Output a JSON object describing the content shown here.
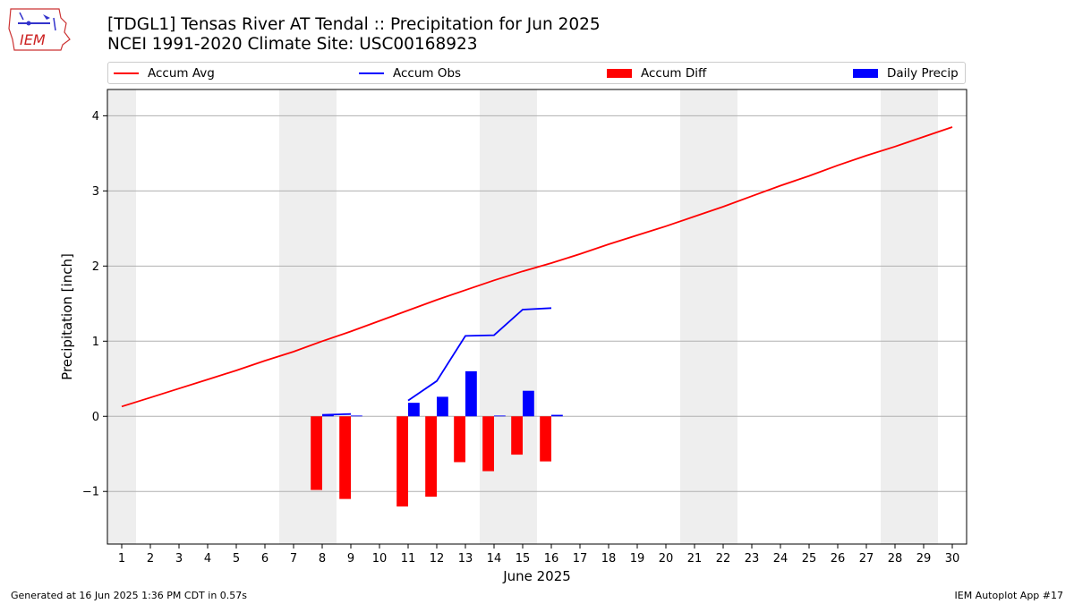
{
  "header": {
    "title": "[TDGL1] Tensas River  AT Tendal :: Precipitation for Jun 2025",
    "subtitle": "NCEI 1991-2020 Climate Site: USC00168923",
    "logo_text": "IEM"
  },
  "legend": [
    {
      "label": "Accum Avg",
      "color": "#ff0000",
      "kind": "line"
    },
    {
      "label": "Accum Obs",
      "color": "#0000ff",
      "kind": "line"
    },
    {
      "label": "Accum Diff",
      "color": "#ff0000",
      "kind": "bar"
    },
    {
      "label": "Daily Precip",
      "color": "#0000ff",
      "kind": "bar"
    }
  ],
  "footer": {
    "generated": "Generated at 16 Jun 2025 1:36 PM CDT in 0.57s",
    "app": "IEM Autoplot App #17"
  },
  "chart_data": {
    "type": "bar",
    "title": "[TDGL1] Tensas River  AT Tendal :: Precipitation for Jun 2025",
    "xlabel": "June 2025",
    "ylabel": "Precipitation [inch]",
    "x": [
      1,
      2,
      3,
      4,
      5,
      6,
      7,
      8,
      9,
      10,
      11,
      12,
      13,
      14,
      15,
      16,
      17,
      18,
      19,
      20,
      21,
      22,
      23,
      24,
      25,
      26,
      27,
      28,
      29,
      30
    ],
    "xlim": [
      0.5,
      30.5
    ],
    "ylim": [
      -1.7,
      4.35
    ],
    "yticks": [
      -1,
      0,
      1,
      2,
      3,
      4
    ],
    "ytick_labels": [
      "−1",
      "0",
      "1",
      "2",
      "3",
      "4"
    ],
    "grid": "horizontal",
    "legend_position": "top",
    "weekend_shading": [
      1,
      7,
      8,
      14,
      15,
      21,
      22,
      28,
      29
    ],
    "series": [
      {
        "name": "Accum Avg",
        "type": "line",
        "color": "#ff0000",
        "x": [
          1,
          2,
          3,
          4,
          5,
          6,
          7,
          8,
          9,
          10,
          11,
          12,
          13,
          14,
          15,
          16,
          17,
          18,
          19,
          20,
          21,
          22,
          23,
          24,
          25,
          26,
          27,
          28,
          29,
          30
        ],
        "values": [
          0.13,
          0.25,
          0.37,
          0.49,
          0.61,
          0.74,
          0.86,
          1.0,
          1.13,
          1.27,
          1.41,
          1.55,
          1.68,
          1.81,
          1.93,
          2.04,
          2.16,
          2.29,
          2.41,
          2.53,
          2.66,
          2.79,
          2.93,
          3.07,
          3.2,
          3.34,
          3.47,
          3.59,
          3.72,
          3.85
        ]
      },
      {
        "name": "Accum Obs",
        "type": "line",
        "color": "#0000ff",
        "x": [
          8,
          9,
          9.4,
          10,
          11,
          12,
          13,
          14,
          15,
          16
        ],
        "values": [
          0.02,
          0.03,
          null,
          null,
          0.21,
          0.47,
          1.07,
          1.08,
          1.42,
          1.44
        ]
      },
      {
        "name": "Accum Diff",
        "type": "bar",
        "color": "#ff0000",
        "x": [
          8,
          9,
          11,
          12,
          13,
          14,
          15,
          16
        ],
        "values": [
          -0.98,
          -1.1,
          -1.2,
          -1.07,
          -0.61,
          -0.73,
          -0.51,
          -0.6
        ]
      },
      {
        "name": "Daily Precip",
        "type": "bar",
        "color": "#0000ff",
        "x": [
          8,
          9,
          11,
          12,
          13,
          14,
          15,
          16
        ],
        "values": [
          0.02,
          0.01,
          0.18,
          0.26,
          0.6,
          0.01,
          0.34,
          0.02
        ]
      }
    ]
  }
}
